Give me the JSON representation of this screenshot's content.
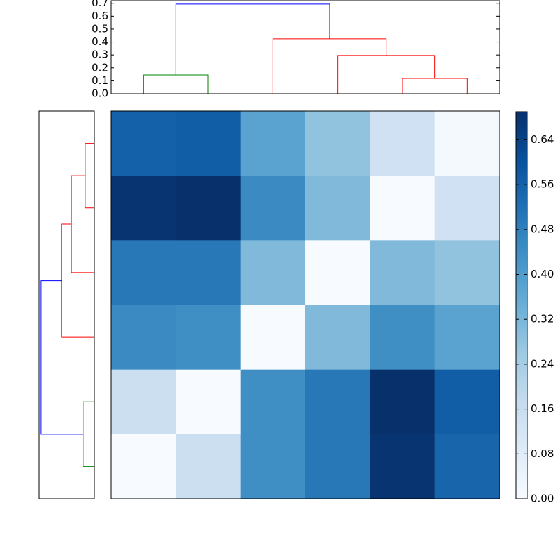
{
  "chart_data": [
    {
      "type": "dendrogram",
      "orientation": "top",
      "ylim": [
        0,
        0.72
      ],
      "yticks": [
        {
          "value": 0,
          "label": "0.0"
        },
        {
          "value": 0.1,
          "label": "0.1"
        },
        {
          "value": 0.2,
          "label": "0.2"
        },
        {
          "value": 0.3,
          "label": "0.3"
        },
        {
          "value": 0.4,
          "label": "0.4"
        },
        {
          "value": 0.5,
          "label": "0.5"
        },
        {
          "value": 0.6,
          "label": "0.6"
        },
        {
          "value": 0.7,
          "label": "0.7"
        }
      ],
      "leaf_count": 6,
      "links": [
        {
          "left": 0,
          "right": 1,
          "height": 0.145,
          "color": "#008000"
        },
        {
          "left": 4,
          "right": 5,
          "height": 0.118,
          "color": "#ff0000"
        },
        {
          "left": 3,
          "right": 7,
          "height": 0.296,
          "color": "#ff0000"
        },
        {
          "left": 2,
          "right": 8,
          "height": 0.425,
          "color": "#ff0000"
        },
        {
          "left": 6,
          "right": 9,
          "height": 0.694,
          "color": "#0000ff"
        }
      ]
    },
    {
      "type": "dendrogram",
      "orientation": "left",
      "xlim": [
        0,
        0.72
      ],
      "leaf_count": 6,
      "links": [
        {
          "left": 0,
          "right": 1,
          "height": 0.118,
          "color": "#ff0000"
        },
        {
          "left": 2,
          "right": 6,
          "height": 0.296,
          "color": "#ff0000"
        },
        {
          "left": 3,
          "right": 7,
          "height": 0.425,
          "color": "#ff0000"
        },
        {
          "left": 4,
          "right": 5,
          "height": 0.145,
          "color": "#008000"
        },
        {
          "left": 8,
          "right": 9,
          "height": 0.694,
          "color": "#0000ff"
        }
      ]
    },
    {
      "type": "heatmap",
      "colormap": "Blues",
      "clim": [
        0,
        0.69
      ],
      "values": [
        [
          0.56,
          0.57,
          0.38,
          0.28,
          0.14,
          0.01
        ],
        [
          0.68,
          0.69,
          0.45,
          0.31,
          0.0,
          0.14
        ],
        [
          0.5,
          0.5,
          0.31,
          0.0,
          0.31,
          0.28
        ],
        [
          0.45,
          0.44,
          0.0,
          0.31,
          0.44,
          0.38
        ],
        [
          0.15,
          0.0,
          0.44,
          0.5,
          0.69,
          0.57
        ],
        [
          0.0,
          0.15,
          0.44,
          0.5,
          0.68,
          0.55
        ]
      ],
      "colorbar_ticks": [
        {
          "value": 0,
          "label": "0.00"
        },
        {
          "value": 0.08,
          "label": "0.08"
        },
        {
          "value": 0.16,
          "label": "0.16"
        },
        {
          "value": 0.24,
          "label": "0.24"
        },
        {
          "value": 0.32,
          "label": "0.32"
        },
        {
          "value": 0.4,
          "label": "0.40"
        },
        {
          "value": 0.48,
          "label": "0.48"
        },
        {
          "value": 0.56,
          "label": "0.56"
        },
        {
          "value": 0.64,
          "label": "0.64"
        }
      ]
    }
  ]
}
